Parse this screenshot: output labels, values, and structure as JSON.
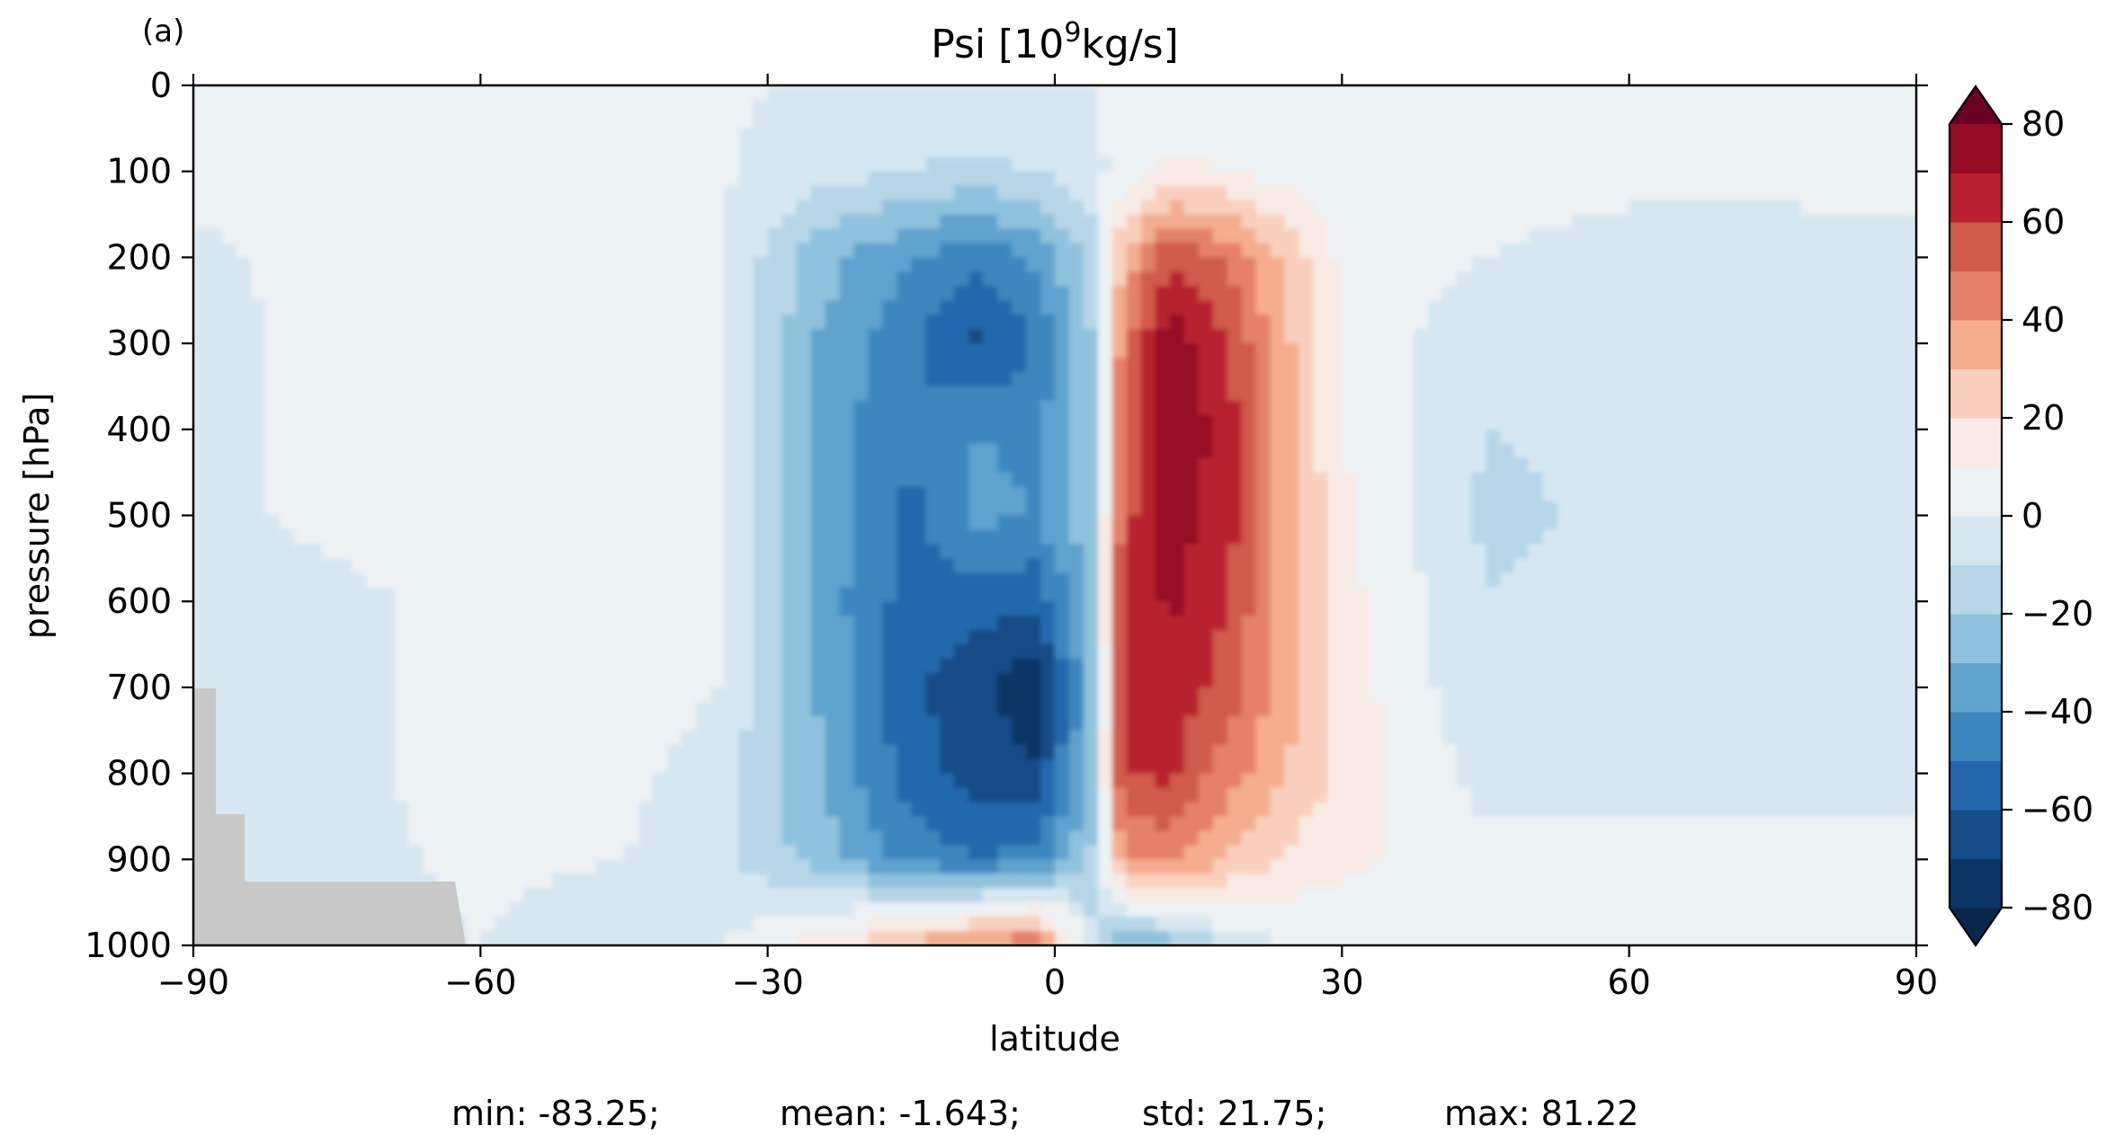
{
  "chart_data": {
    "type": "heatmap",
    "panel_label": "(a)",
    "title_base": "Psi [10",
    "title_exp": "9",
    "title_unit": "kg/s]",
    "xlabel": "latitude",
    "ylabel": "pressure [hPa]",
    "xlim": [
      -90,
      90
    ],
    "ylim": [
      1000,
      0
    ],
    "x_ticks": [
      "−90",
      "−60",
      "−30",
      "0",
      "30",
      "60",
      "90"
    ],
    "x_tick_values": [
      -90,
      -60,
      -30,
      0,
      30,
      60,
      90
    ],
    "y_ticks": [
      "0",
      "100",
      "200",
      "300",
      "400",
      "500",
      "600",
      "700",
      "800",
      "900",
      "1000"
    ],
    "y_tick_values": [
      0,
      100,
      200,
      300,
      400,
      500,
      600,
      700,
      800,
      900,
      1000
    ],
    "colorbar": {
      "levels": [
        -80,
        -70,
        -60,
        -50,
        -40,
        -30,
        -20,
        -10,
        0,
        10,
        20,
        30,
        40,
        50,
        60,
        70,
        80
      ],
      "tick_labels": [
        "80",
        "60",
        "40",
        "20",
        "0",
        "−20",
        "−40",
        "−60",
        "−80"
      ],
      "tick_values": [
        80,
        60,
        40,
        20,
        0,
        -20,
        -40,
        -60,
        -80
      ],
      "extend": "both",
      "colormap": "RdBu_r",
      "colors": [
        "#0a3463",
        "#134c87",
        "#2467ac",
        "#3c87be",
        "#5fa2cd",
        "#8fc2dd",
        "#b6d6e8",
        "#d6e7f1",
        "#edf2f5",
        "#f8ebe5",
        "#f9d0bd",
        "#f4ad8e",
        "#e5806b",
        "#d05a4c",
        "#b8202f",
        "#960c26",
        "#6b0120"
      ],
      "under_color": "#08274f",
      "over_color": "#6b0120"
    },
    "masked_region_color": "#c8c8c8",
    "cells": {
      "x": [
        -90,
        -75,
        -60,
        -45,
        -35,
        -25,
        -15,
        -8,
        -2,
        4,
        7,
        12,
        18,
        24,
        30,
        45,
        60,
        75,
        90
      ],
      "y": [
        0,
        100,
        200,
        300,
        400,
        500,
        600,
        700,
        800,
        900,
        1000
      ],
      "values": [
        [
          3,
          2,
          3,
          3,
          2,
          -2,
          -3,
          -3,
          -2,
          0,
          2,
          3,
          3,
          3,
          3,
          3,
          3,
          3,
          3
        ],
        [
          3,
          3,
          3,
          3,
          1,
          -5,
          -10,
          -12,
          -10,
          -4,
          5,
          12,
          10,
          6,
          4,
          3,
          2,
          2,
          2
        ],
        [
          -2,
          3,
          3,
          3,
          1,
          -25,
          -40,
          -48,
          -38,
          -15,
          30,
          60,
          48,
          28,
          8,
          0,
          -3,
          -3,
          -2
        ],
        [
          -2,
          2,
          3,
          8,
          1,
          -30,
          -48,
          -62,
          -50,
          -20,
          45,
          78,
          60,
          33,
          9,
          -8,
          -6,
          -3,
          -3
        ],
        [
          -2,
          2,
          3,
          10,
          1,
          -32,
          -50,
          -40,
          -42,
          -22,
          50,
          80,
          65,
          35,
          10,
          -10,
          -8,
          -3,
          -2
        ],
        [
          -2,
          2,
          3,
          10,
          1,
          -33,
          -52,
          -38,
          -40,
          -22,
          55,
          75,
          65,
          35,
          12,
          -12,
          -8,
          -3,
          -2
        ],
        [
          -3,
          -2,
          3,
          8,
          1,
          -33,
          -55,
          -55,
          -58,
          -25,
          60,
          72,
          60,
          35,
          14,
          -10,
          -6,
          -3,
          -2
        ],
        [
          -4,
          -2,
          3,
          6,
          0,
          -30,
          -58,
          -68,
          -78,
          -28,
          62,
          68,
          55,
          35,
          15,
          -8,
          -5,
          -2,
          -2
        ],
        [
          -4,
          -2,
          3,
          3,
          -5,
          -28,
          -55,
          -65,
          -68,
          -25,
          60,
          62,
          45,
          30,
          18,
          -5,
          -3,
          -2,
          -2
        ],
        [
          -2,
          -3,
          2,
          0,
          -8,
          -24,
          -45,
          -50,
          -45,
          -18,
          40,
          42,
          30,
          18,
          12,
          5,
          3,
          2,
          2
        ],
        [
          -4,
          -3,
          0,
          -6,
          0,
          15,
          35,
          45,
          50,
          -8,
          -30,
          -25,
          -8,
          0,
          3,
          5,
          2,
          2,
          2
        ]
      ]
    },
    "stats": {
      "min": "min: -83.25;",
      "mean": "mean: -1.643;",
      "std": "std: 21.75;",
      "max": "max: 81.22"
    }
  }
}
